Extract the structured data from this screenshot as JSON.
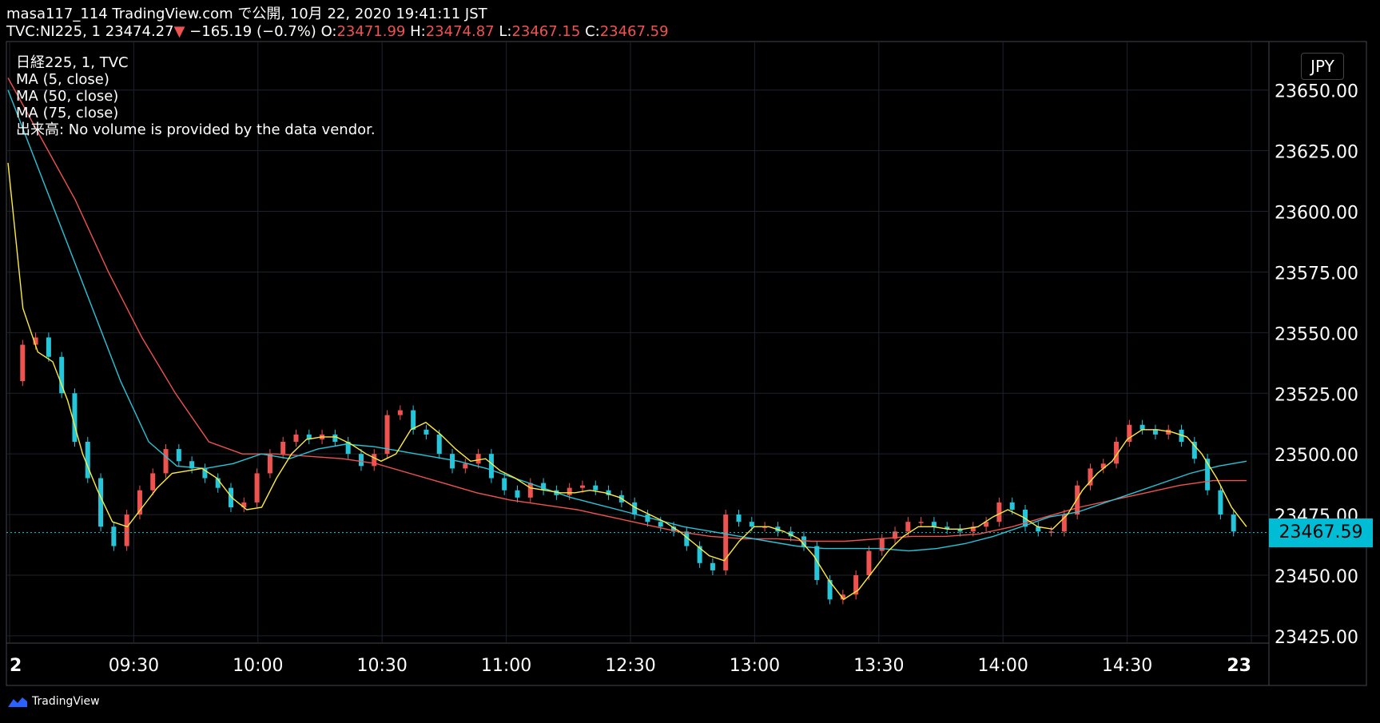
{
  "header": {
    "line1": "masa117_114 TradingView.com で公開, 10月 22, 2020 19:41:11 JST",
    "symbol": "TVC:NI225, 1",
    "last": "23474.27",
    "change_arrow": "▼",
    "change": "−165.19 (−0.7%)",
    "o_label": "O:",
    "o_value": "23471.99",
    "h_label": "H:",
    "h_value": "23474.87",
    "l_label": "L:",
    "l_value": "23467.15",
    "c_label": "C:",
    "c_value": "23467.59"
  },
  "legend": [
    "日経225, 1, TVC",
    "MA (5, close)",
    "MA (50, close)",
    "MA (75, close)",
    "出来高: No volume is provided by the data vendor."
  ],
  "currency": "JPY",
  "current_price": "23467.59",
  "footer": {
    "brand": "TradingView"
  },
  "colors": {
    "up": "#ef5350",
    "down": "#26c6da",
    "ma5": "#ffeb3b",
    "ma50": "#26c6da",
    "ma75": "#ef5350",
    "grid": "#1e222d"
  },
  "chart_data": {
    "type": "line",
    "y_ticks": [
      "23425.00",
      "23450.00",
      "23475.00",
      "23500.00",
      "23525.00",
      "23550.00",
      "23575.00",
      "23600.00",
      "23625.00",
      "23650.00"
    ],
    "ylim": [
      23422,
      23670
    ],
    "x_ticks": [
      "2",
      "09:30",
      "10:00",
      "10:30",
      "11:00",
      "12:30",
      "13:00",
      "13:30",
      "14:00",
      "14:30",
      "23"
    ],
    "price_series": [
      23530,
      23545,
      23548,
      23540,
      23525,
      23505,
      23490,
      23470,
      23462,
      23475,
      23485,
      23492,
      23502,
      23497,
      23494,
      23490,
      23486,
      23478,
      23480,
      23492,
      23500,
      23505,
      23508,
      23506,
      23508,
      23505,
      23500,
      23495,
      23500,
      23516,
      23518,
      23510,
      23508,
      23500,
      23494,
      23496,
      23500,
      23490,
      23485,
      23482,
      23488,
      23485,
      23483,
      23486,
      23487,
      23485,
      23483,
      23480,
      23475,
      23472,
      23470,
      23468,
      23462,
      23455,
      23452,
      23475,
      23472,
      23470,
      23470,
      23468,
      23466,
      23462,
      23448,
      23440,
      23442,
      23450,
      23460,
      23465,
      23468,
      23472,
      23472,
      23470,
      23469,
      23468,
      23470,
      23472,
      23480,
      23477,
      23470,
      23468,
      23468,
      23475,
      23487,
      23494,
      23496,
      23505,
      23512,
      23510,
      23508,
      23510,
      23505,
      23498,
      23485,
      23475,
      23468
    ],
    "ma5": [
      23620,
      23560,
      23542,
      23538,
      23522,
      23500,
      23485,
      23472,
      23470,
      23478,
      23486,
      23492,
      23493,
      23494,
      23490,
      23482,
      23477,
      23478,
      23490,
      23500,
      23506,
      23507,
      23507,
      23504,
      23500,
      23497,
      23500,
      23510,
      23513,
      23508,
      23502,
      23497,
      23498,
      23493,
      23490,
      23486,
      23485,
      23484,
      23484,
      23485,
      23484,
      23482,
      23478,
      23475,
      23472,
      23468,
      23463,
      23458,
      23456,
      23464,
      23470,
      23470,
      23468,
      23465,
      23458,
      23448,
      23440,
      23444,
      23452,
      23460,
      23466,
      23470,
      23470,
      23469,
      23469,
      23470,
      23474,
      23477,
      23474,
      23470,
      23469,
      23475,
      23485,
      23492,
      23497,
      23506,
      23510,
      23510,
      23509,
      23507,
      23500,
      23490,
      23478,
      23470
    ],
    "ma50": [
      23650,
      23620,
      23590,
      23560,
      23530,
      23505,
      23495,
      23494,
      23496,
      23500,
      23498,
      23502,
      23504,
      23503,
      23501,
      23499,
      23497,
      23494,
      23490,
      23486,
      23482,
      23479,
      23476,
      23473,
      23470,
      23468,
      23466,
      23464,
      23462,
      23461,
      23461,
      23461,
      23460,
      23461,
      23463,
      23466,
      23470,
      23474,
      23476,
      23480,
      23484,
      23488,
      23492,
      23495,
      23497
    ],
    "ma75": [
      23655,
      23630,
      23605,
      23575,
      23548,
      23525,
      23505,
      23500,
      23500,
      23499,
      23498,
      23496,
      23492,
      23488,
      23484,
      23481,
      23479,
      23477,
      23474,
      23471,
      23468,
      23466,
      23465,
      23465,
      23464,
      23464,
      23465,
      23466,
      23466,
      23467,
      23470,
      23474,
      23478,
      23481,
      23484,
      23487,
      23489,
      23489
    ]
  }
}
